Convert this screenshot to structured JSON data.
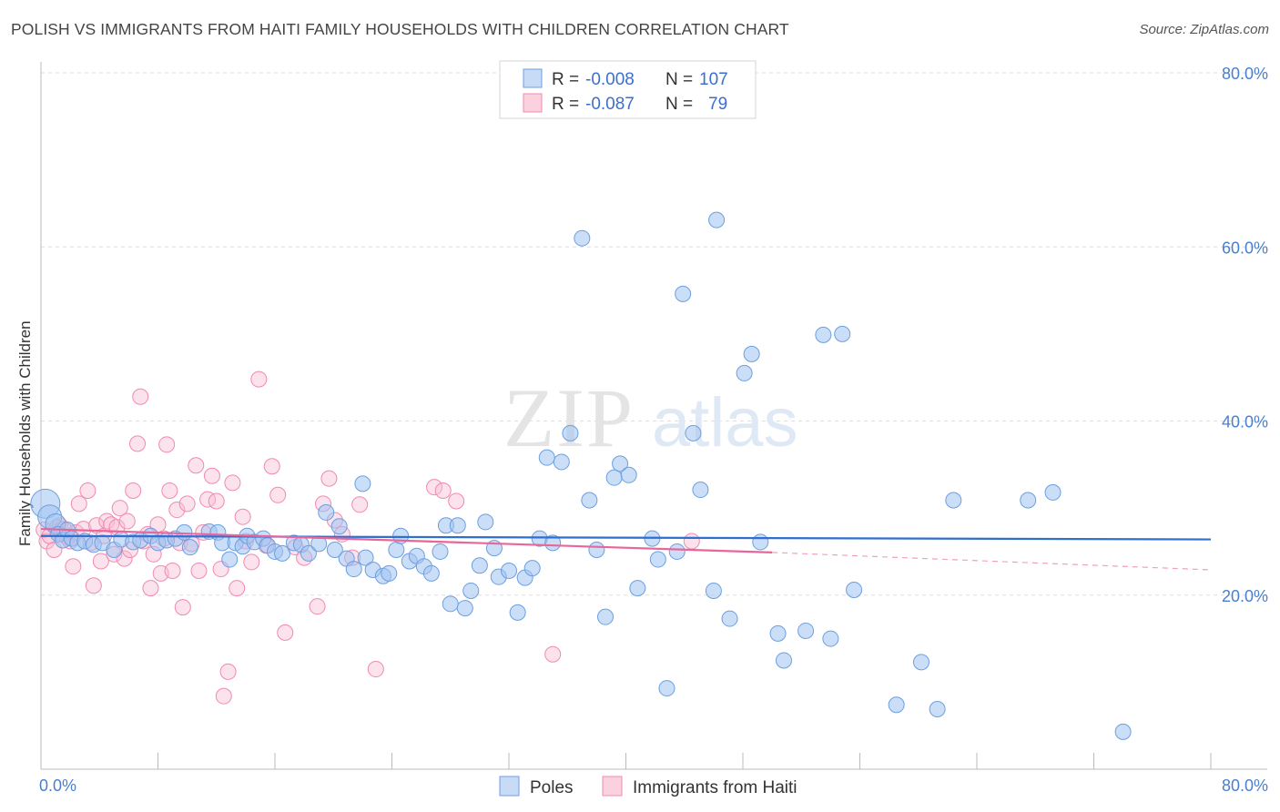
{
  "title": "POLISH VS IMMIGRANTS FROM HAITI FAMILY HOUSEHOLDS WITH CHILDREN CORRELATION CHART",
  "source": "Source: ZipAtlas.com",
  "watermark": {
    "zip": "ZIP",
    "atlas": "atlas"
  },
  "legend_top": [
    {
      "r_label": "R =",
      "r_value": "-0.008",
      "n_label": "N =",
      "n_value": "107",
      "color": "#6c9fe0"
    },
    {
      "r_label": "R =",
      "r_value": "-0.087",
      "n_label": "N =",
      "n_value": "79",
      "color": "#f08ab0"
    }
  ],
  "chart_data": {
    "type": "scatter",
    "title": "POLISH VS IMMIGRANTS FROM HAITI FAMILY HOUSEHOLDS WITH CHILDREN CORRELATION CHART",
    "ylabel": "Family Households with Children",
    "xlabel": "",
    "xlim": [
      0,
      80
    ],
    "ylim": [
      0,
      80
    ],
    "x_tick_labels": [
      "0.0%",
      "80.0%"
    ],
    "y_tick_labels": [
      "20.0%",
      "40.0%",
      "60.0%",
      "80.0%"
    ],
    "y_ticks": [
      20,
      40,
      60,
      80
    ],
    "grid": "horizontal dashed",
    "legend_position": "bottom",
    "series": [
      {
        "name": "Poles",
        "color": "#6c9fe0",
        "trend": {
          "x": [
            0,
            80
          ],
          "y": [
            26.8,
            26.4
          ]
        },
        "points": [
          [
            0.3,
            30.5
          ],
          [
            0.6,
            29.0
          ],
          [
            1.0,
            28.2
          ],
          [
            1.2,
            27.0
          ],
          [
            1.5,
            26.3
          ],
          [
            1.8,
            27.5
          ],
          [
            2.1,
            26.5
          ],
          [
            2.5,
            26.0
          ],
          [
            3.0,
            26.2
          ],
          [
            3.6,
            25.8
          ],
          [
            4.2,
            26.0
          ],
          [
            5.0,
            25.2
          ],
          [
            5.5,
            26.4
          ],
          [
            6.3,
            26.1
          ],
          [
            6.8,
            26.3
          ],
          [
            7.5,
            26.8
          ],
          [
            8.0,
            26.0
          ],
          [
            8.6,
            26.3
          ],
          [
            9.2,
            26.5
          ],
          [
            9.8,
            27.2
          ],
          [
            10.2,
            25.5
          ],
          [
            11.5,
            27.3
          ],
          [
            12.1,
            27.2
          ],
          [
            12.4,
            26.0
          ],
          [
            12.9,
            24.1
          ],
          [
            13.3,
            26.0
          ],
          [
            13.8,
            25.6
          ],
          [
            14.1,
            26.8
          ],
          [
            14.6,
            26.1
          ],
          [
            15.2,
            26.5
          ],
          [
            15.5,
            25.7
          ],
          [
            16.0,
            25.0
          ],
          [
            16.5,
            24.8
          ],
          [
            17.3,
            26.0
          ],
          [
            17.8,
            25.8
          ],
          [
            18.3,
            24.8
          ],
          [
            19.0,
            25.9
          ],
          [
            19.5,
            29.5
          ],
          [
            20.1,
            25.2
          ],
          [
            20.4,
            27.9
          ],
          [
            20.9,
            24.2
          ],
          [
            21.4,
            23.0
          ],
          [
            22.0,
            32.8
          ],
          [
            22.2,
            24.3
          ],
          [
            22.7,
            22.9
          ],
          [
            23.4,
            22.2
          ],
          [
            23.8,
            22.5
          ],
          [
            24.3,
            25.2
          ],
          [
            24.6,
            26.8
          ],
          [
            25.2,
            23.9
          ],
          [
            25.7,
            24.5
          ],
          [
            26.2,
            23.3
          ],
          [
            26.7,
            22.5
          ],
          [
            27.3,
            25.0
          ],
          [
            27.7,
            28.0
          ],
          [
            28.0,
            19.0
          ],
          [
            28.5,
            28.0
          ],
          [
            29.0,
            18.5
          ],
          [
            29.4,
            20.5
          ],
          [
            30.0,
            23.4
          ],
          [
            30.4,
            28.4
          ],
          [
            31.0,
            25.4
          ],
          [
            31.3,
            22.1
          ],
          [
            32.0,
            22.8
          ],
          [
            32.6,
            18.0
          ],
          [
            33.1,
            22.0
          ],
          [
            33.6,
            23.1
          ],
          [
            34.1,
            26.5
          ],
          [
            34.6,
            35.8
          ],
          [
            35.0,
            26.0
          ],
          [
            35.6,
            35.3
          ],
          [
            36.2,
            38.6
          ],
          [
            37.0,
            61.0
          ],
          [
            37.5,
            30.9
          ],
          [
            38.0,
            25.2
          ],
          [
            38.6,
            17.5
          ],
          [
            39.2,
            33.5
          ],
          [
            39.6,
            35.1
          ],
          [
            40.2,
            33.8
          ],
          [
            40.8,
            20.8
          ],
          [
            41.8,
            26.5
          ],
          [
            42.2,
            24.1
          ],
          [
            42.8,
            9.3
          ],
          [
            43.5,
            25.0
          ],
          [
            43.9,
            54.6
          ],
          [
            44.6,
            38.6
          ],
          [
            45.1,
            32.1
          ],
          [
            46.0,
            20.5
          ],
          [
            47.1,
            17.3
          ],
          [
            48.1,
            45.5
          ],
          [
            48.6,
            47.7
          ],
          [
            49.2,
            26.1
          ],
          [
            50.4,
            15.6
          ],
          [
            50.8,
            12.5
          ],
          [
            52.3,
            15.9
          ],
          [
            53.5,
            49.9
          ],
          [
            54.0,
            15.0
          ],
          [
            54.8,
            50.0
          ],
          [
            55.6,
            20.6
          ],
          [
            58.5,
            7.4
          ],
          [
            60.2,
            12.3
          ],
          [
            61.3,
            6.9
          ],
          [
            62.4,
            30.9
          ],
          [
            67.5,
            30.9
          ],
          [
            69.2,
            31.8
          ],
          [
            74.0,
            4.3
          ],
          [
            46.2,
            63.1
          ]
        ]
      },
      {
        "name": "Immigrants from Haiti",
        "color": "#f08ab0",
        "trend": {
          "x": [
            0,
            50
          ],
          "y": [
            27.6,
            24.9
          ]
        },
        "trend_dashed": {
          "x": [
            50,
            80
          ],
          "y": [
            24.9,
            22.9
          ]
        },
        "points": [
          [
            0.2,
            27.5
          ],
          [
            0.4,
            26.2
          ],
          [
            0.6,
            26.8
          ],
          [
            0.9,
            25.2
          ],
          [
            1.1,
            27.8
          ],
          [
            1.3,
            28.0
          ],
          [
            1.5,
            27.3
          ],
          [
            1.8,
            26.6
          ],
          [
            2.0,
            26.2
          ],
          [
            2.2,
            23.3
          ],
          [
            2.4,
            27.2
          ],
          [
            2.6,
            30.5
          ],
          [
            2.9,
            27.6
          ],
          [
            3.2,
            32.0
          ],
          [
            3.4,
            26.0
          ],
          [
            3.6,
            21.1
          ],
          [
            3.8,
            28.0
          ],
          [
            4.1,
            23.9
          ],
          [
            4.3,
            26.8
          ],
          [
            4.5,
            28.5
          ],
          [
            4.8,
            28.1
          ],
          [
            5.0,
            24.7
          ],
          [
            5.2,
            27.8
          ],
          [
            5.4,
            30.0
          ],
          [
            5.7,
            24.2
          ],
          [
            5.9,
            28.5
          ],
          [
            6.1,
            25.2
          ],
          [
            6.3,
            32.0
          ],
          [
            6.6,
            37.4
          ],
          [
            6.8,
            42.8
          ],
          [
            7.0,
            26.2
          ],
          [
            7.3,
            27.0
          ],
          [
            7.5,
            20.8
          ],
          [
            7.7,
            24.7
          ],
          [
            8.0,
            28.1
          ],
          [
            8.2,
            22.5
          ],
          [
            8.4,
            26.5
          ],
          [
            8.6,
            37.3
          ],
          [
            8.8,
            32.0
          ],
          [
            9.0,
            22.8
          ],
          [
            9.3,
            29.8
          ],
          [
            9.5,
            26.0
          ],
          [
            9.7,
            18.6
          ],
          [
            10.0,
            30.5
          ],
          [
            10.3,
            25.9
          ],
          [
            10.6,
            34.9
          ],
          [
            10.8,
            22.8
          ],
          [
            11.1,
            27.2
          ],
          [
            11.4,
            31.0
          ],
          [
            11.7,
            33.7
          ],
          [
            12.0,
            30.8
          ],
          [
            12.3,
            23.0
          ],
          [
            12.5,
            8.4
          ],
          [
            12.8,
            11.2
          ],
          [
            13.1,
            32.9
          ],
          [
            13.4,
            20.8
          ],
          [
            13.8,
            29.0
          ],
          [
            14.0,
            26.2
          ],
          [
            14.4,
            23.8
          ],
          [
            14.9,
            44.8
          ],
          [
            15.4,
            25.7
          ],
          [
            15.8,
            34.8
          ],
          [
            16.2,
            31.5
          ],
          [
            16.7,
            15.7
          ],
          [
            17.4,
            25.5
          ],
          [
            18.0,
            24.3
          ],
          [
            18.9,
            18.7
          ],
          [
            19.3,
            30.5
          ],
          [
            19.7,
            33.4
          ],
          [
            20.1,
            28.6
          ],
          [
            20.6,
            27.0
          ],
          [
            21.3,
            24.3
          ],
          [
            21.8,
            30.4
          ],
          [
            22.9,
            11.5
          ],
          [
            26.9,
            32.4
          ],
          [
            27.5,
            32.0
          ],
          [
            28.4,
            30.8
          ],
          [
            35.0,
            13.2
          ],
          [
            44.5,
            26.2
          ]
        ]
      }
    ]
  },
  "bottom_legend": [
    {
      "label": "Poles",
      "color": "#6c9fe0"
    },
    {
      "label": "Immigrants from Haiti",
      "color": "#f08ab0"
    }
  ]
}
